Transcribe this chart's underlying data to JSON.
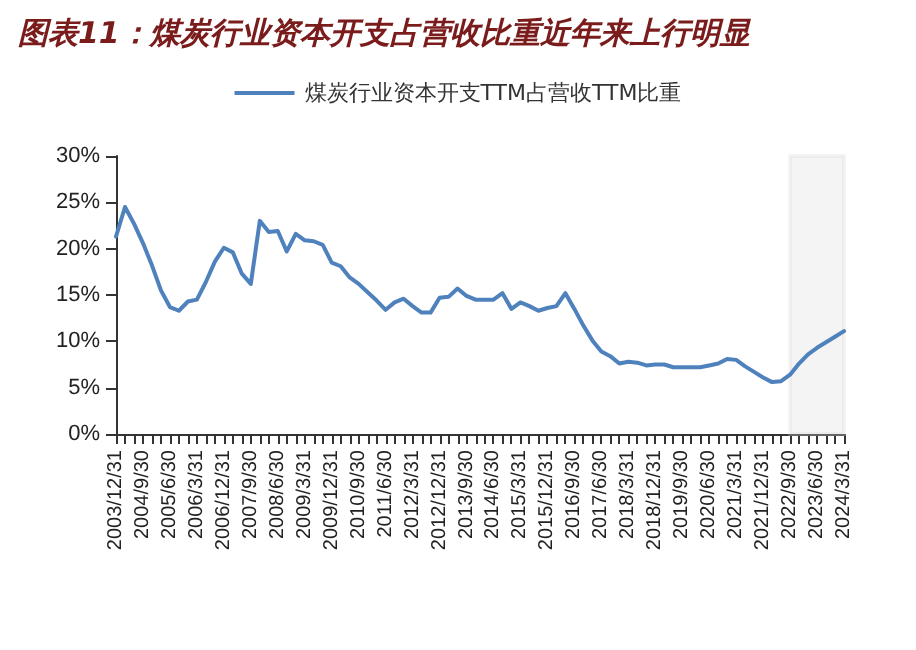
{
  "chart_data": {
    "type": "line",
    "title": "图表11：煤炭行业资本开支占营收比重近年来上行明显",
    "categories": [
      "2003/12/31",
      null,
      null,
      "2004/9/30",
      null,
      null,
      "2005/6/30",
      null,
      null,
      "2006/3/31",
      null,
      null,
      "2006/12/31",
      null,
      null,
      "2007/9/30",
      null,
      null,
      "2008/6/30",
      null,
      null,
      "2009/3/31",
      null,
      null,
      "2009/12/31",
      null,
      null,
      "2010/9/30",
      null,
      null,
      "2011/6/30",
      null,
      null,
      "2012/3/31",
      null,
      null,
      "2012/12/31",
      null,
      null,
      "2013/9/30",
      null,
      null,
      "2014/6/30",
      null,
      null,
      "2015/3/31",
      null,
      null,
      "2015/12/31",
      null,
      null,
      "2016/9/30",
      null,
      null,
      "2017/6/30",
      null,
      null,
      "2018/3/31",
      null,
      null,
      "2018/12/31",
      null,
      null,
      "2019/9/30",
      null,
      null,
      "2020/6/30",
      null,
      null,
      "2021/3/31",
      null,
      null,
      "2021/12/31",
      null,
      null,
      "2022/9/30",
      null,
      null,
      "2023/6/30",
      null,
      null,
      "2024/3/31"
    ],
    "series": [
      {
        "name": "煤炭行业资本开支TTM占营收TTM比重",
        "color": "#4f81bd",
        "values": [
          21.3,
          24.5,
          22.7,
          20.6,
          18.2,
          15.5,
          13.7,
          13.3,
          14.3,
          14.5,
          16.4,
          18.6,
          20.1,
          19.6,
          17.3,
          16.2,
          23.0,
          21.8,
          21.9,
          19.7,
          21.6,
          20.9,
          20.8,
          20.4,
          18.5,
          18.1,
          16.9,
          16.2,
          15.3,
          14.4,
          13.4,
          14.2,
          14.6,
          13.8,
          13.1,
          13.1,
          14.7,
          14.8,
          15.7,
          14.9,
          14.5,
          14.5,
          14.5,
          15.2,
          13.5,
          14.2,
          13.8,
          13.3,
          13.6,
          13.8,
          15.2,
          13.5,
          11.7,
          10.1,
          8.9,
          8.4,
          7.6,
          7.8,
          7.7,
          7.4,
          7.5,
          7.5,
          7.2,
          7.2,
          7.2,
          7.2,
          7.4,
          7.6,
          8.1,
          8.0,
          7.3,
          6.7,
          6.1,
          5.6,
          5.7,
          6.4,
          7.6,
          8.6,
          9.3,
          9.9,
          10.5,
          11.1
        ]
      }
    ],
    "ylim": [
      0,
      30
    ],
    "yticks": [
      {
        "value": 0,
        "label": "0%"
      },
      {
        "value": 5,
        "label": "5%"
      },
      {
        "value": 10,
        "label": "10%"
      },
      {
        "value": 15,
        "label": "15%"
      },
      {
        "value": 20,
        "label": "20%"
      },
      {
        "value": 25,
        "label": "25%"
      },
      {
        "value": 30,
        "label": "30%"
      }
    ],
    "bands": [
      {
        "axis": "x",
        "from": "2022/9/30",
        "to": "2024/3/31",
        "color": "#d9d9d9"
      }
    ],
    "grid": false,
    "legend": "top",
    "marker": "none",
    "line_style": "solid"
  }
}
